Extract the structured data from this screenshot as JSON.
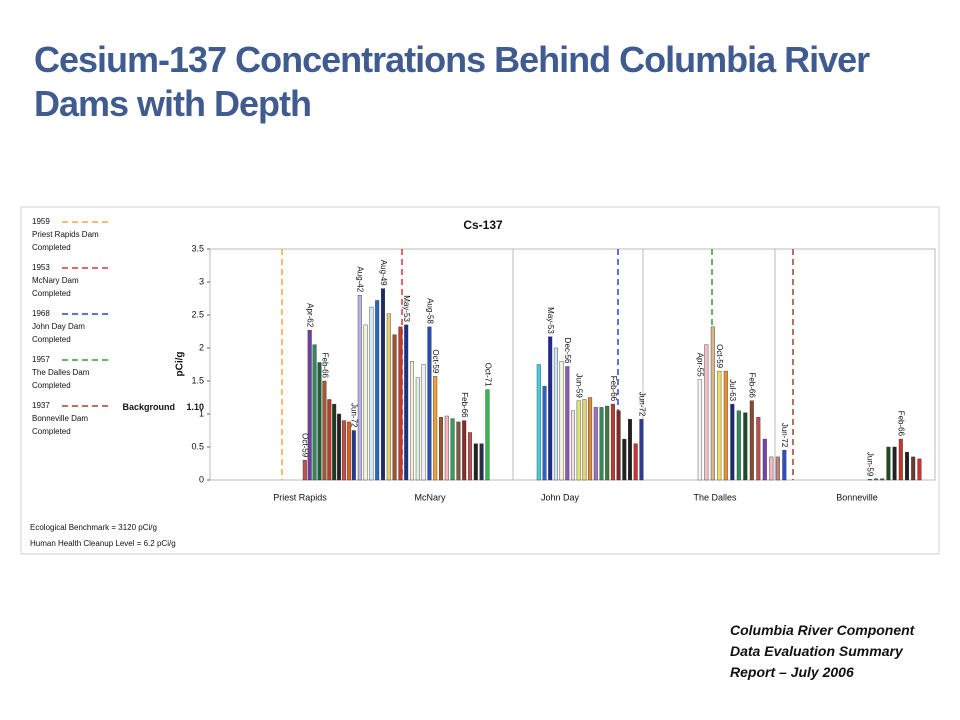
{
  "title": "Cesium-137 Concentrations Behind Columbia River Dams with Depth",
  "report": [
    "Columbia River Component",
    "Data Evaluation Summary",
    "Report – July 2006"
  ],
  "chart_data": {
    "type": "bar",
    "title": "Cs-137",
    "ylabel": "pCi/g",
    "ylim": [
      0,
      3.5
    ],
    "yticks": [
      0,
      0.5,
      1,
      1.5,
      2,
      2.5,
      3,
      3.5
    ],
    "background_label": "Background",
    "background": {
      "value": 1.1,
      "label": "1.10"
    },
    "notes": [
      "Ecological Benchmark = 3120 pCi/g",
      "Human Health Cleanup Level = 6.2 pCi/g"
    ],
    "legend": [
      {
        "year": "1959",
        "name": "Priest Rapids Dam",
        "status": "Completed",
        "color": "#f4a742"
      },
      {
        "year": "1953",
        "name": "McNary Dam",
        "status": "Completed",
        "color": "#d9363e"
      },
      {
        "year": "1968",
        "name": "John Day Dam",
        "status": "Completed",
        "color": "#3046c8"
      },
      {
        "year": "1957",
        "name": "The Dalles Dam",
        "status": "Completed",
        "color": "#3a9a3a"
      },
      {
        "year": "1937",
        "name": "Bonneville Dam",
        "status": "Completed",
        "color": "#a0402c"
      }
    ],
    "groups": [
      {
        "name": "Priest Rapids",
        "values": [
          0.3,
          2.27,
          2.05,
          1.78,
          1.5,
          1.22,
          1.15,
          1.0,
          0.9,
          0.88,
          0.75
        ],
        "colors": [
          "#c0504d",
          "#6d3fa0",
          "#2e8b57",
          "#1f5f3f",
          "#a05a2c",
          "#c0392b",
          "#1e3a1e",
          "#222222",
          "#c0504d",
          "#e06020",
          "#1f3a93"
        ],
        "labels": [
          "Oct-59",
          "Apr-62",
          null,
          null,
          "Feb-66",
          null,
          null,
          null,
          null,
          null,
          "Jun-72"
        ]
      },
      {
        "name": "McNary",
        "values": [
          2.8,
          2.35,
          2.62,
          2.72,
          2.9,
          2.52,
          2.2,
          2.32,
          2.35,
          1.8,
          1.55,
          1.75,
          2.32,
          1.57,
          0.95,
          0.97,
          0.93,
          0.88,
          0.9,
          0.72,
          0.55,
          0.55,
          1.37
        ],
        "colors": [
          "#b9b3e6",
          "#f3f3d8",
          "#cfe8f5",
          "#2a64c8",
          "#1a2a6c",
          "#e8d070",
          "#a0522d",
          "#c0392b",
          "#1f2f8f",
          "#f2f2dc",
          "#dff0e0",
          "#f0f0f0",
          "#2a50b8",
          "#f0a030",
          "#a0522d",
          "#f4b6c2",
          "#3a9a5a",
          "#7a5a3a",
          "#8b2a2a",
          "#c0504d",
          "#222222",
          "#2b2b4b",
          "#2dbb4d"
        ],
        "labels": [
          "Aug-42",
          null,
          null,
          null,
          "Aug-49",
          null,
          null,
          null,
          "May-53",
          null,
          null,
          null,
          "Aug-58",
          "Oct-59",
          null,
          null,
          null,
          null,
          "Feb-66",
          null,
          null,
          null,
          "Oct-71"
        ]
      },
      {
        "name": "John Day",
        "values": [
          1.75,
          1.42,
          2.17,
          2.0,
          1.8,
          1.72,
          1.05,
          1.2,
          1.22,
          1.25,
          1.1,
          1.1,
          1.12,
          1.15,
          1.05,
          0.62,
          0.92,
          0.55,
          0.92
        ],
        "colors": [
          "#3fd0e0",
          "#2a64c8",
          "#1a2a9c",
          "#cfe8f5",
          "#f2f2dc",
          "#8a5ab0",
          "#f4e0e8",
          "#d8e870",
          "#e8d070",
          "#e08a30",
          "#a070c0",
          "#2e8b57",
          "#3a7a3a",
          "#c0392b",
          "#7a2a2a",
          "#222222",
          "#1e1e1e",
          "#d03030",
          "#2a3aa0"
        ],
        "labels": [
          null,
          null,
          "May-53",
          null,
          null,
          "Dec-56",
          null,
          "Jun-59",
          null,
          null,
          null,
          null,
          null,
          "Feb-66",
          null,
          null,
          null,
          null,
          "Jun-72"
        ]
      },
      {
        "name": "The Dalles",
        "values": [
          1.52,
          2.05,
          2.32,
          1.65,
          1.65,
          1.15,
          1.05,
          1.02,
          1.2,
          0.95,
          0.62,
          0.35,
          0.35,
          0.45
        ],
        "colors": [
          "#f0f8f0",
          "#f4c0c8",
          "#d8b888",
          "#f0e060",
          "#e89030",
          "#1a2a7c",
          "#2e8b57",
          "#1e4a2e",
          "#8b4a2a",
          "#c0504d",
          "#7a40b0",
          "#f4b6c2",
          "#c08080",
          "#2a50c8"
        ],
        "labels": [
          "Apr-55",
          null,
          null,
          "Oct-59",
          null,
          "Jul-63",
          null,
          null,
          "Feb-66",
          null,
          null,
          null,
          null,
          "Jun-72"
        ]
      },
      {
        "name": "Bonneville",
        "values": [
          0.01,
          0.02,
          0.02,
          0.5,
          0.5,
          0.62,
          0.42,
          0.35,
          0.32
        ],
        "colors": [
          "#2a50c8",
          "#2e8b57",
          "#555555",
          "#1e4a1e",
          "#222222",
          "#c0392b",
          "#1e1e1e",
          "#6a3a2a",
          "#d03030"
        ],
        "labels": [
          "Jun-59",
          null,
          null,
          null,
          null,
          "Feb-66",
          null,
          null,
          null
        ]
      }
    ]
  }
}
